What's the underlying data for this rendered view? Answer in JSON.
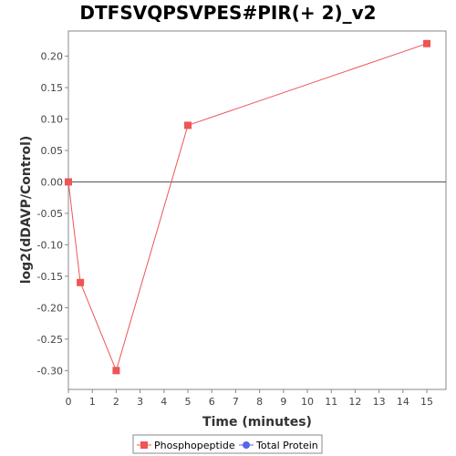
{
  "chart_data": {
    "type": "line",
    "title": "DTFSVQPSVPES#PIR(+ 2)_v2",
    "xlabel": "Time (minutes)",
    "ylabel": "log2(dDAVP/Control)",
    "xlim": [
      0,
      15.8
    ],
    "ylim": [
      -0.33,
      0.24
    ],
    "x_ticks": [
      "0",
      "1",
      "2",
      "3",
      "4",
      "5",
      "6",
      "7",
      "8",
      "9",
      "10",
      "11",
      "12",
      "13",
      "14",
      "15"
    ],
    "y_ticks": [
      "0.20",
      "0.15",
      "0.10",
      "0.05",
      "0.00",
      "-0.05",
      "-0.10",
      "-0.15",
      "-0.20",
      "-0.25",
      "-0.30"
    ],
    "grid": false,
    "legend_position": "bottom",
    "series": [
      {
        "name": "Phosphopeptide",
        "color": "#ee5555",
        "marker": "square",
        "x": [
          0,
          0.5,
          2,
          5,
          15
        ],
        "y": [
          0.0,
          -0.16,
          -0.3,
          0.09,
          0.22
        ]
      },
      {
        "name": "Total Protein",
        "color": "#5566ee",
        "marker": "circle",
        "x": [],
        "y": []
      }
    ]
  }
}
